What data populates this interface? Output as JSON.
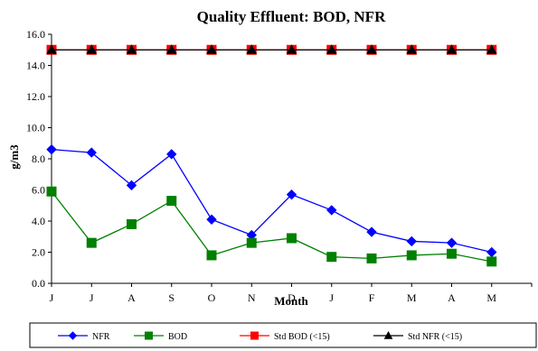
{
  "chart_data": {
    "type": "line",
    "title": "Quality  Effluent:  BOD, NFR",
    "xlabel": "Month",
    "ylabel": "g/m3",
    "ylim": [
      0,
      16
    ],
    "yticks": [
      "0.0",
      "2.0",
      "4.0",
      "6.0",
      "8.0",
      "10.0",
      "12.0",
      "14.0",
      "16.0"
    ],
    "categories": [
      "J",
      "J",
      "A",
      "S",
      "O",
      "N",
      "D",
      "J",
      "F",
      "M",
      "A",
      "M"
    ],
    "grid": false,
    "legend_position": "bottom",
    "series": [
      {
        "name": "NFR",
        "color": "#0000ff",
        "marker": "diamond",
        "values": [
          8.6,
          8.4,
          6.3,
          8.3,
          4.1,
          3.1,
          5.7,
          4.7,
          3.3,
          2.7,
          2.6,
          2.0
        ]
      },
      {
        "name": "BOD",
        "color": "#008000",
        "marker": "square",
        "values": [
          5.9,
          2.6,
          3.8,
          5.3,
          1.8,
          2.6,
          2.9,
          1.7,
          1.6,
          1.8,
          1.9,
          1.4
        ]
      },
      {
        "name": "Std BOD (<15)",
        "color": "#ff0000",
        "marker": "square",
        "values": [
          15,
          15,
          15,
          15,
          15,
          15,
          15,
          15,
          15,
          15,
          15,
          15
        ]
      },
      {
        "name": "Std NFR (<15)",
        "color": "#000000",
        "marker": "triangle",
        "values": [
          15,
          15,
          15,
          15,
          15,
          15,
          15,
          15,
          15,
          15,
          15,
          15
        ]
      }
    ]
  }
}
